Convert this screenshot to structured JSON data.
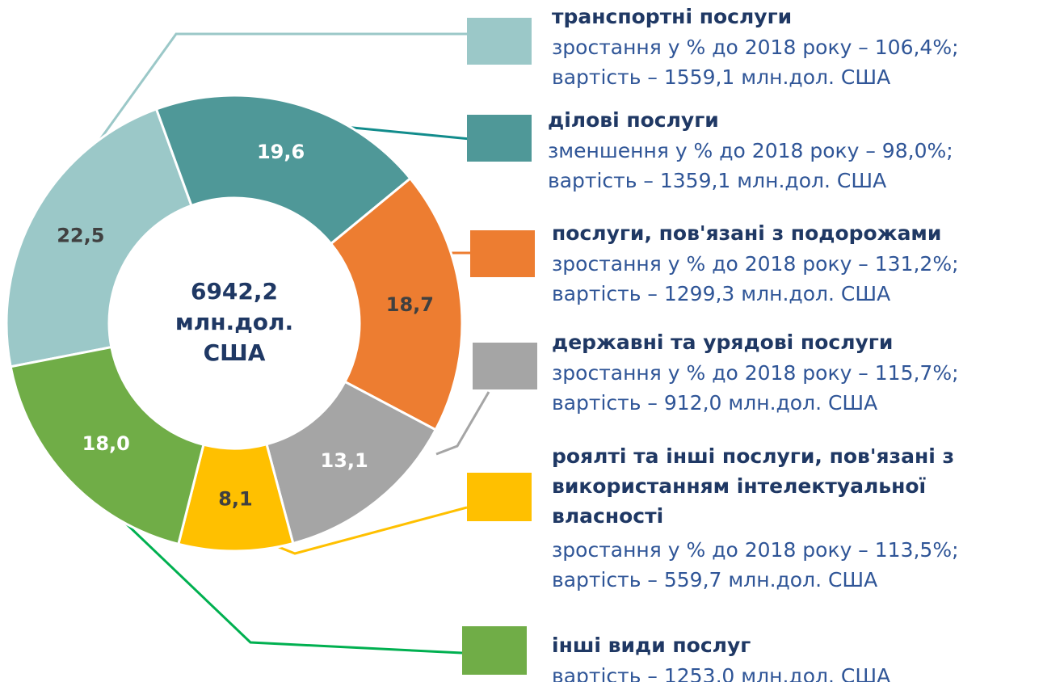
{
  "chart_data": {
    "type": "donut",
    "center_label": [
      "6942,2",
      "млн.дол.",
      "США"
    ],
    "categories": [
      [
        "транспортні послуги"
      ],
      [
        "ділові послуги"
      ],
      [
        "послуги, пов'язані з подорожами"
      ],
      [
        "державні та урядові послуги"
      ],
      [
        "роялті та інші послуги, пов'язані з",
        "використанням інтелектуальної",
        "власності"
      ],
      [
        "інші види послуг"
      ]
    ],
    "values": [
      22.5,
      19.6,
      18.7,
      13.1,
      8.1,
      18.0
    ],
    "value_labels": [
      "22,5",
      "19,6",
      "18,7",
      "13,1",
      "8,1",
      "18,0"
    ],
    "colors": [
      "#9bc8c8",
      "#4f9898",
      "#ed7d31",
      "#a5a5a5",
      "#ffc000",
      "#70ad47"
    ],
    "label_colors": [
      "#404040",
      "#ffffff",
      "#404040",
      "#ffffff",
      "#404040",
      "#ffffff"
    ],
    "descriptions": [
      [
        "зростання у % до 2018 року – 106,4%;",
        "вартість – 1559,1 млн.дол. США"
      ],
      [
        "зменшення у % до 2018 року – 98,0%;",
        "вартість – 1359,1 млн.дол. США"
      ],
      [
        "зростання у % до 2018 року – 131,2%;",
        "вартість – 1299,3 млн.дол. США"
      ],
      [
        "зростання у % до 2018 року – 115,7%;",
        "вартість – 912,0 млн.дол. США"
      ],
      [
        "зростання у % до 2018 року – 113,5%;",
        "вартість – 559,7 млн.дол. США"
      ],
      [
        "вартість – 1253,0 млн.дол. США"
      ]
    ]
  }
}
